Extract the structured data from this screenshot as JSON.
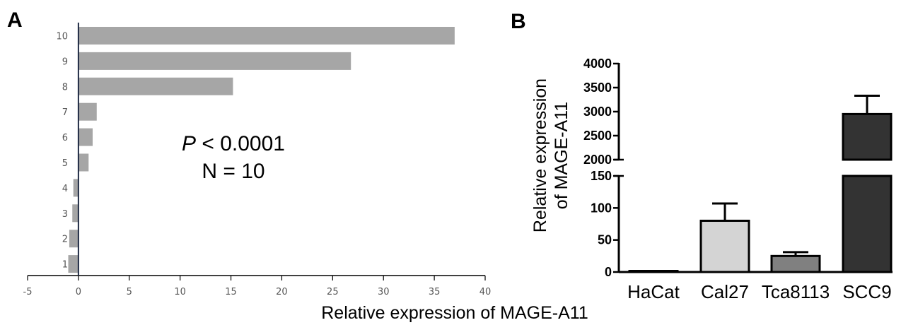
{
  "panel_a": {
    "letter": "A",
    "annotation_p_letter": "P",
    "annotation_p_rest": " < 0.0001",
    "annotation_n": "N = 10"
  },
  "panel_b": {
    "letter": "B"
  },
  "chart_data": [
    {
      "type": "bar",
      "orientation": "horizontal",
      "categories": [
        "1",
        "2",
        "3",
        "4",
        "5",
        "6",
        "7",
        "8",
        "9",
        "10"
      ],
      "values": [
        -1.0,
        -0.9,
        -0.6,
        -0.5,
        1.0,
        1.4,
        1.8,
        15.2,
        26.8,
        37.0
      ],
      "xlabel": "Relative expression of MAGE-A11",
      "ylabel": "",
      "xlim": [
        -5,
        40
      ],
      "xticks": [
        "-5",
        "0",
        "5",
        "10",
        "15",
        "20",
        "25",
        "30",
        "35",
        "40"
      ],
      "bar_color": "#a6a6a6",
      "grid": false
    },
    {
      "type": "bar",
      "categories": [
        "HaCat",
        "Cal27",
        "Tca8113",
        "SCC9"
      ],
      "values": [
        1,
        80,
        25,
        2950
      ],
      "errors": [
        0,
        27,
        6,
        380
      ],
      "colors": [
        "#ffffff",
        "#d4d4d4",
        "#808080",
        "#333333"
      ],
      "ylabel_lines": [
        "Relative expression",
        "of MAGE-A11"
      ],
      "broken_axis": true,
      "ylim_lower": [
        0,
        150
      ],
      "ylim_upper": [
        2000,
        4000
      ],
      "yticks_lower": [
        "0",
        "50",
        "100",
        "150"
      ],
      "yticks_upper": [
        "2000",
        "2500",
        "3000",
        "3500",
        "4000"
      ],
      "grid": false
    }
  ]
}
